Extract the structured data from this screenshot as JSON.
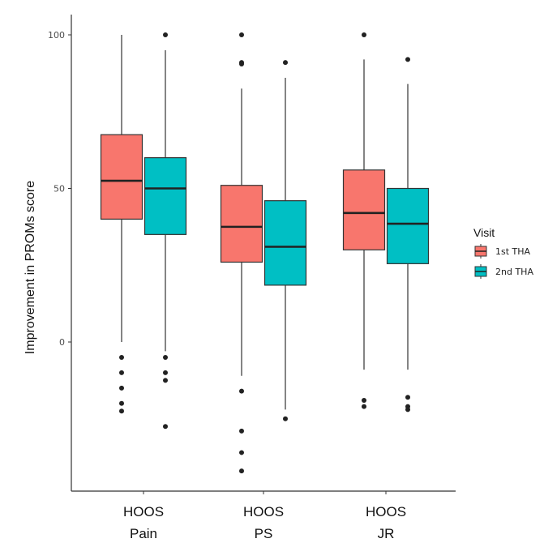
{
  "chart_data": {
    "type": "box",
    "ylabel": "Improvement in PROMs score",
    "y_ticks": [
      0,
      50,
      100
    ],
    "ylim": [
      -50,
      106
    ],
    "grid": false,
    "categories": [
      {
        "line1": "HOOS",
        "line2": "Pain"
      },
      {
        "line1": "HOOS",
        "line2": "PS"
      },
      {
        "line1": "HOOS",
        "line2": "JR"
      }
    ],
    "legend": {
      "title": "Visit",
      "placement": "right",
      "entries": [
        "1st THA",
        "2nd THA"
      ]
    },
    "colors": [
      "#f8766d",
      "#00bfc4"
    ],
    "series": [
      {
        "name": "1st THA",
        "boxes": [
          {
            "whisker_low": 0,
            "q1": 40,
            "median": 52.5,
            "q3": 67.5,
            "whisker_high": 100,
            "outliers": [
              -5,
              -10,
              -15,
              -20,
              -22.5
            ]
          },
          {
            "whisker_low": -11,
            "q1": 26,
            "median": 37.5,
            "q3": 51,
            "whisker_high": 82.5,
            "outliers": [
              100,
              91,
              90.5,
              -16,
              -29,
              -36,
              -42
            ]
          },
          {
            "whisker_low": -9,
            "q1": 30,
            "median": 42,
            "q3": 56,
            "whisker_high": 92,
            "outliers": [
              100,
              -19,
              -21
            ]
          }
        ]
      },
      {
        "name": "2nd THA",
        "boxes": [
          {
            "whisker_low": -3,
            "q1": 35,
            "median": 50,
            "q3": 60,
            "whisker_high": 95,
            "outliers": [
              100,
              -5,
              -10,
              -12.5,
              -27.5
            ]
          },
          {
            "whisker_low": -22,
            "q1": 18.5,
            "median": 31,
            "q3": 46,
            "whisker_high": 86,
            "outliers": [
              91,
              -25
            ]
          },
          {
            "whisker_low": -9,
            "q1": 25.5,
            "median": 38.5,
            "q3": 50,
            "whisker_high": 84,
            "outliers": [
              92,
              -18,
              -21,
              -22
            ]
          }
        ]
      }
    ]
  }
}
